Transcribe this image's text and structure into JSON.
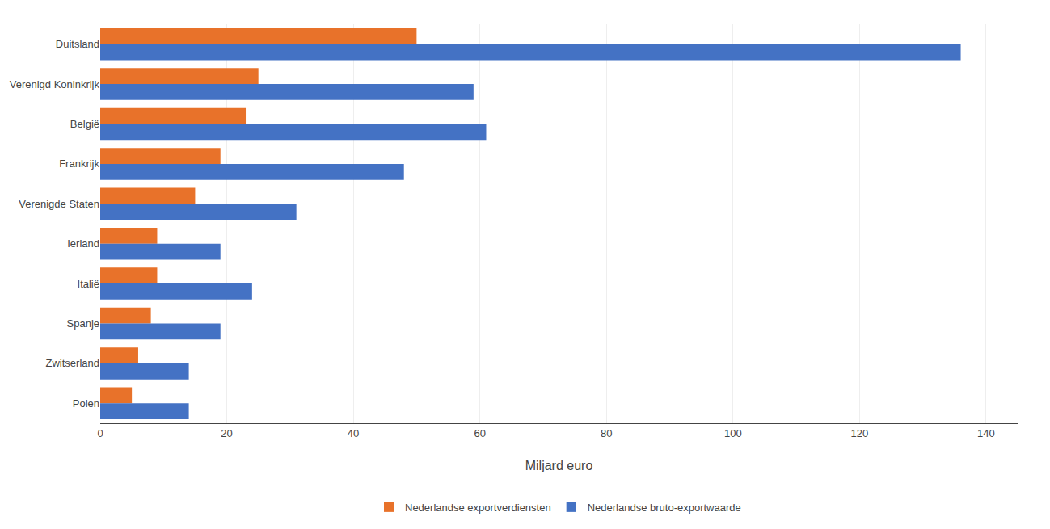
{
  "chart_data": {
    "type": "bar",
    "orientation": "horizontal",
    "categories": [
      "Duitsland",
      "Verenigd Koninkrijk",
      "België",
      "Frankrijk",
      "Verenigde Staten",
      "Ierland",
      "Italië",
      "Spanje",
      "Zwitserland",
      "Polen"
    ],
    "series": [
      {
        "name": "Nederlandse exportverdiensten",
        "color": "#E8722A",
        "values": [
          50,
          25,
          23,
          19,
          15,
          9,
          9,
          8,
          6,
          5
        ]
      },
      {
        "name": "Nederlandse bruto-exportwaarde",
        "color": "#4472C4",
        "values": [
          136,
          59,
          61,
          48,
          31,
          19,
          24,
          19,
          14,
          14
        ]
      }
    ],
    "xlabel": "Miljard euro",
    "xlim": [
      0,
      145
    ],
    "xticks": [
      0,
      20,
      40,
      60,
      80,
      100,
      120,
      140
    ],
    "grid": true,
    "legend": "bottom"
  }
}
